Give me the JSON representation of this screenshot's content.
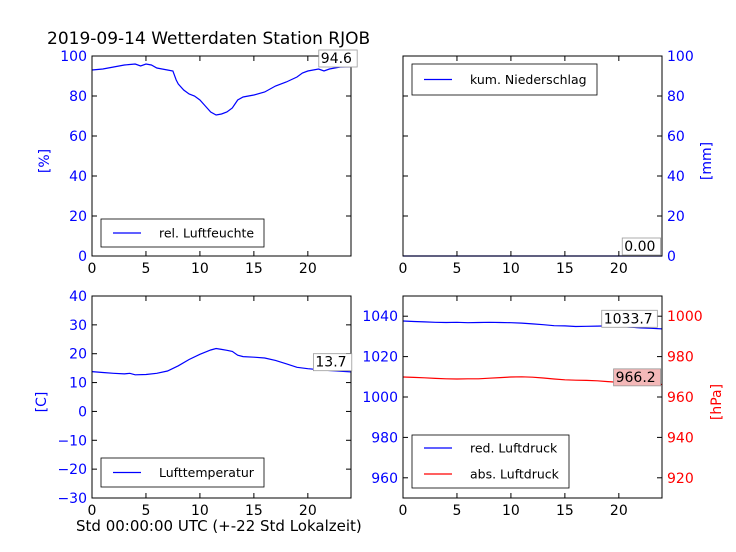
{
  "figure": {
    "title": "2019-09-14 Wetterdaten Station RJOB",
    "xlabel": "Std 00:00:00 UTC (+-22 Std Lokalzeit)"
  },
  "colors": {
    "blue": "#0000ff",
    "red": "#ff0000",
    "black": "#000000",
    "red_label_bg": "#f4b8b8"
  },
  "chart_data": [
    {
      "id": "humidity",
      "type": "line",
      "xlim": [
        0,
        24
      ],
      "ylim": [
        0,
        100
      ],
      "xticks": [
        0,
        5,
        10,
        15,
        20
      ],
      "yticks": [
        0,
        20,
        40,
        60,
        80,
        100
      ],
      "ylabel": "[%]",
      "legend": "bottom-left",
      "series": [
        {
          "name": "rel. Luftfeuchte",
          "color": "#0000ff",
          "x": [
            0,
            1,
            2,
            3,
            4,
            4.5,
            5,
            5.5,
            6,
            6.5,
            7,
            7.5,
            7.8,
            8,
            8.5,
            9,
            9.5,
            10,
            10.5,
            11,
            11.5,
            12,
            12.5,
            13,
            13.5,
            14,
            15,
            16,
            17,
            18,
            19,
            19.5,
            20,
            20.5,
            21,
            21.5,
            22,
            22.5,
            23,
            24
          ],
          "y": [
            93,
            93.5,
            94.5,
            95.5,
            96,
            95,
            96,
            95.5,
            94,
            93.5,
            93,
            92.5,
            88,
            86,
            83,
            81,
            80,
            78,
            75,
            72,
            70.5,
            71,
            72,
            74,
            78,
            79.5,
            80.5,
            82,
            85,
            87,
            89.5,
            91.5,
            92.5,
            93,
            93.5,
            92.5,
            93.5,
            94,
            94.5,
            94.6
          ]
        }
      ],
      "annotations": [
        {
          "text": "94.6",
          "x": 21.2,
          "y": 96.5,
          "bg": "#ffffff"
        }
      ]
    },
    {
      "id": "precip",
      "type": "line",
      "xlim": [
        0,
        24
      ],
      "ylim": [
        0,
        100
      ],
      "xticks": [
        0,
        5,
        10,
        15,
        20
      ],
      "yticks": [
        0,
        20,
        40,
        60,
        80,
        100
      ],
      "ylabel": "[mm]",
      "ylabel_side": "right",
      "legend": "top-left",
      "series": [
        {
          "name": "kum. Niederschlag",
          "color": "#0000ff",
          "x": [
            0,
            24
          ],
          "y": [
            0,
            0
          ]
        }
      ],
      "annotations": [
        {
          "text": "0.00",
          "x": 20.5,
          "y": 2.5,
          "bg": "#ffffff"
        }
      ]
    },
    {
      "id": "temperature",
      "type": "line",
      "xlim": [
        0,
        24
      ],
      "ylim": [
        -30,
        40
      ],
      "xticks": [
        0,
        5,
        10,
        15,
        20
      ],
      "yticks": [
        -30,
        -20,
        -10,
        0,
        10,
        20,
        30,
        40
      ],
      "ylabel": "[C]",
      "legend": "bottom-left",
      "series": [
        {
          "name": "Lufttemperatur",
          "color": "#0000ff",
          "x": [
            0,
            1,
            2,
            3,
            3.5,
            4,
            5,
            6,
            7,
            8,
            9,
            10,
            11,
            11.5,
            12,
            12.5,
            13,
            13.5,
            14,
            15,
            16,
            17,
            18,
            19,
            20,
            21,
            22,
            24
          ],
          "y": [
            13.8,
            13.5,
            13.2,
            13,
            13.2,
            12.7,
            12.8,
            13.2,
            14,
            15.8,
            18,
            19.8,
            21.3,
            21.8,
            21.5,
            21.2,
            20.8,
            19.5,
            19,
            18.8,
            18.5,
            17.7,
            16.5,
            15.3,
            14.8,
            14.5,
            14.2,
            13.7
          ]
        }
      ],
      "annotations": [
        {
          "text": "13.7",
          "x": 20.7,
          "y": 15.5,
          "bg": "#ffffff"
        }
      ]
    },
    {
      "id": "pressure",
      "type": "line",
      "xlim": [
        0,
        24
      ],
      "ylim": [
        950,
        1050
      ],
      "xticks": [
        0,
        5,
        10,
        15,
        20
      ],
      "yticks": [
        960,
        980,
        1000,
        1020,
        1040
      ],
      "y2lim": [
        910,
        1010
      ],
      "y2ticks": [
        920,
        940,
        960,
        980,
        1000
      ],
      "y2label": "[hPa]",
      "legend": "bottom-left",
      "series": [
        {
          "name": "red. Luftdruck",
          "color": "#0000ff",
          "axis": "left",
          "x": [
            0,
            1,
            2,
            3,
            4,
            5,
            6,
            7,
            8,
            9,
            10,
            11,
            12,
            13,
            14,
            15,
            16,
            17,
            18,
            19,
            20,
            21,
            22,
            23,
            24
          ],
          "y": [
            1037.6,
            1037.4,
            1037.2,
            1037,
            1036.9,
            1037,
            1036.8,
            1036.9,
            1037,
            1036.9,
            1036.8,
            1036.6,
            1036.2,
            1035.8,
            1035.3,
            1035.2,
            1034.9,
            1035,
            1035.1,
            1035.2,
            1035,
            1034.6,
            1034.2,
            1034,
            1033.7
          ]
        },
        {
          "name": "abs. Luftdruck",
          "color": "#ff0000",
          "axis": "right",
          "x": [
            0,
            1,
            2,
            3,
            4,
            5,
            6,
            7,
            8,
            9,
            10,
            11,
            12,
            13,
            14,
            15,
            16,
            17,
            18,
            19,
            20,
            21,
            22,
            23,
            24
          ],
          "y": [
            969.9,
            969.7,
            969.5,
            969.2,
            969,
            968.9,
            969,
            969,
            969.3,
            969.6,
            969.9,
            970,
            969.8,
            969.4,
            968.9,
            968.5,
            968.3,
            968.2,
            968,
            967.6,
            967.3,
            967,
            966.7,
            966.5,
            966.2
          ]
        }
      ],
      "annotations": [
        {
          "text": "1033.7",
          "x": 18.6,
          "y": 1036.5,
          "bg": "#ffffff"
        },
        {
          "text": "966.2",
          "x": 19.7,
          "y": 1007.5,
          "bg": "#f4b8b8"
        }
      ]
    }
  ]
}
